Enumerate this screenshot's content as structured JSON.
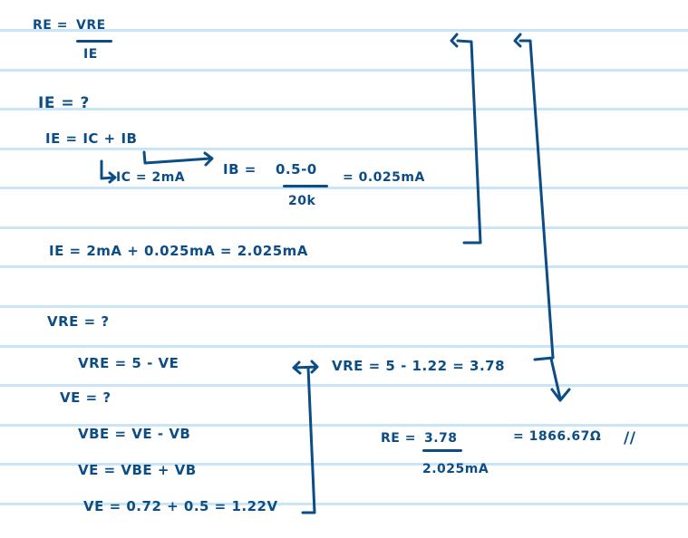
{
  "notes": {
    "re_formula": {
      "lhs": "RE =",
      "numerator": "VRE",
      "denominator": "IE"
    },
    "ie_question": "IE = ?",
    "ie_sum": "IE = IC + IB",
    "ic_value": "IC = 2mA",
    "ib_formula": {
      "lhs": "IB =",
      "numerator": "0.5-0",
      "denominator": "20k",
      "result": "= 0.025mA"
    },
    "ie_result": "IE = 2mA + 0.025mA = 2.025mA",
    "vre_question": "VRE = ?",
    "vre_formula": "VRE = 5 - VE",
    "ve_question": "VE = ?",
    "vbe_formula": "VBE = VE - VB",
    "ve_formula": "VE = VBE + VB",
    "ve_result": "VE = 0.72 + 0.5 = 1.22V",
    "vre_result": "VRE = 5 - 1.22 = 3.78",
    "re_result": {
      "lhs": "RE =",
      "numerator": "3.78",
      "denominator": "2.025mA",
      "result": "= 1866.67Ω",
      "mark": "//"
    }
  },
  "colors": {
    "ink": "#0c4d86",
    "ruling": "#c9e6f8",
    "paper": "#ffffff"
  }
}
